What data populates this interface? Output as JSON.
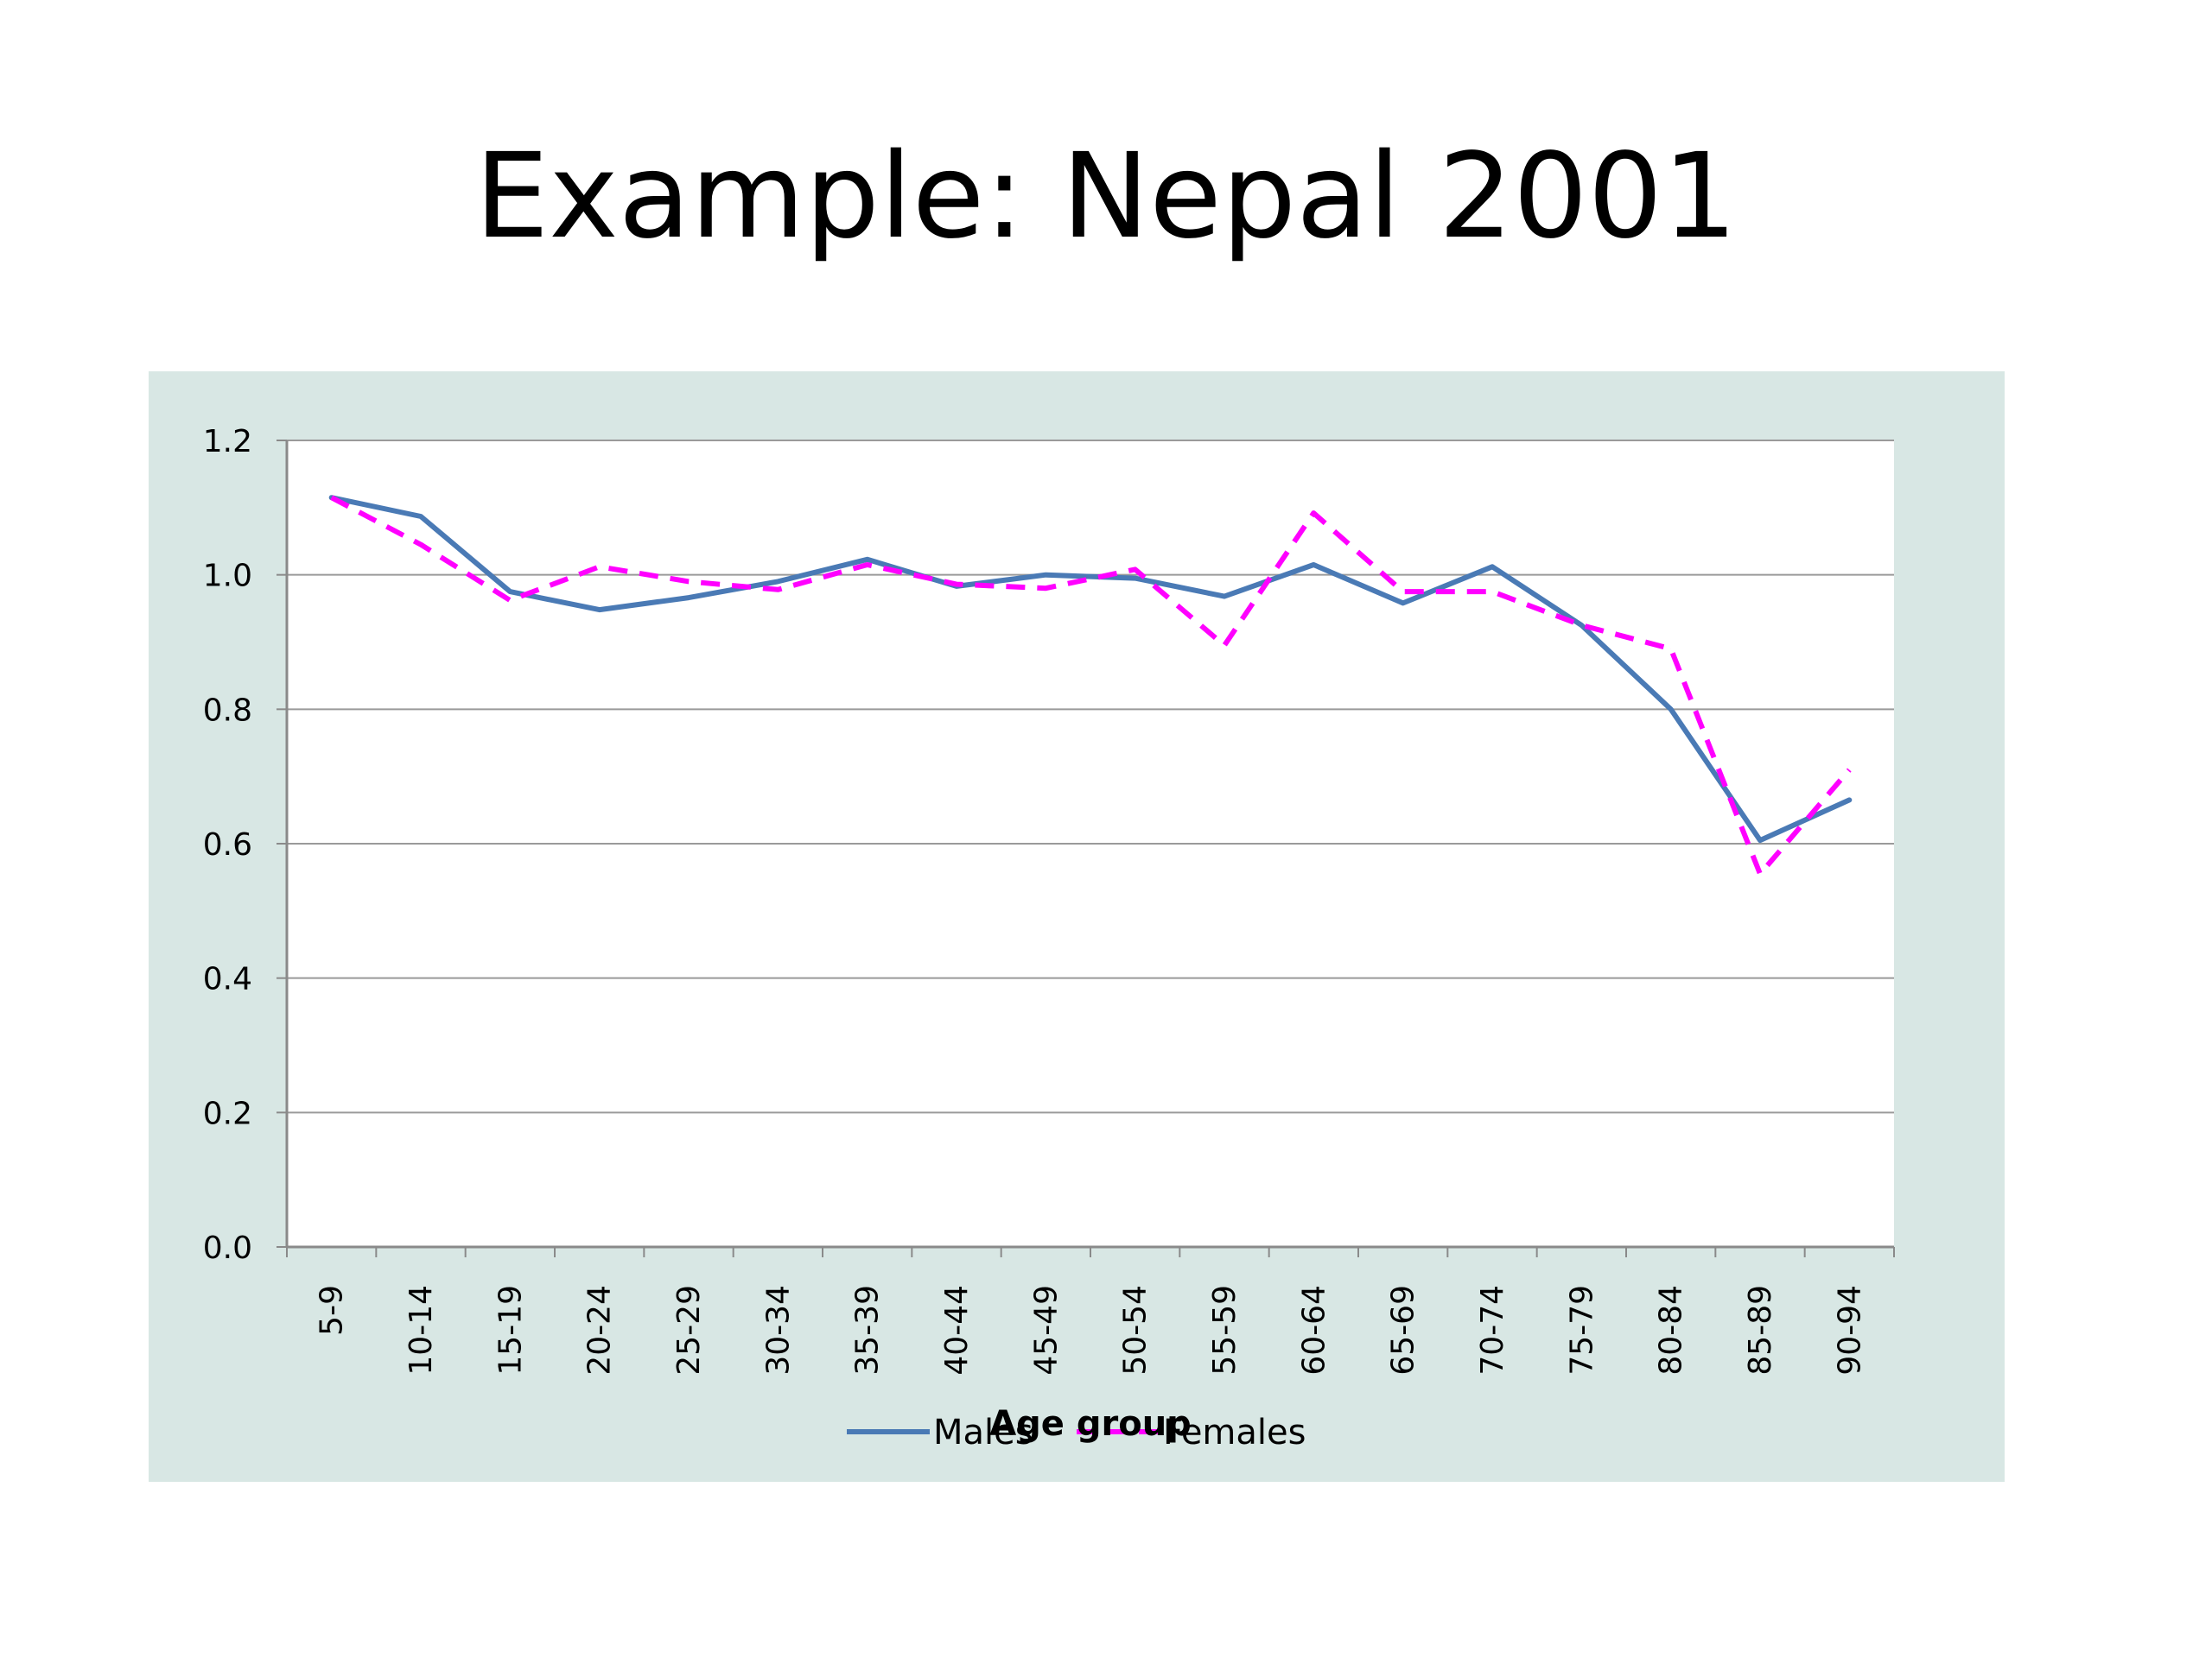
{
  "slide": {
    "title": "Example: Nepal 2001"
  },
  "chart_data": {
    "type": "line",
    "title": "",
    "xlabel": "Age group",
    "ylabel": "",
    "ylim": [
      0,
      1.2
    ],
    "yticks": [
      "0.0",
      "0.2",
      "0.4",
      "0.6",
      "0.8",
      "1.0",
      "1.2"
    ],
    "ytick_values": [
      0,
      0.2,
      0.4,
      0.6,
      0.8,
      1.0,
      1.2
    ],
    "grid": true,
    "legend_position": "bottom",
    "categories": [
      "5-9",
      "10-14",
      "15-19",
      "20-24",
      "25-29",
      "30-34",
      "35-39",
      "40-44",
      "45-49",
      "50-54",
      "55-59",
      "60-64",
      "65-69",
      "70-74",
      "75-79",
      "80-84",
      "85-89",
      "90-94"
    ],
    "series": [
      {
        "name": "Males",
        "color": "#4a7ab5",
        "style": "solid",
        "values": [
          1.115,
          1.087,
          0.975,
          0.948,
          0.966,
          0.99,
          1.023,
          0.983,
          1.0,
          0.995,
          0.968,
          1.015,
          0.958,
          1.012,
          0.925,
          0.8,
          0.605,
          0.665
        ]
      },
      {
        "name": "Females",
        "color": "#ff00ff",
        "style": "dashed",
        "values": [
          1.115,
          1.045,
          0.962,
          1.012,
          0.99,
          0.978,
          1.015,
          0.986,
          0.98,
          1.008,
          0.895,
          1.092,
          0.975,
          0.975,
          0.925,
          0.89,
          0.555,
          0.71
        ]
      }
    ]
  }
}
